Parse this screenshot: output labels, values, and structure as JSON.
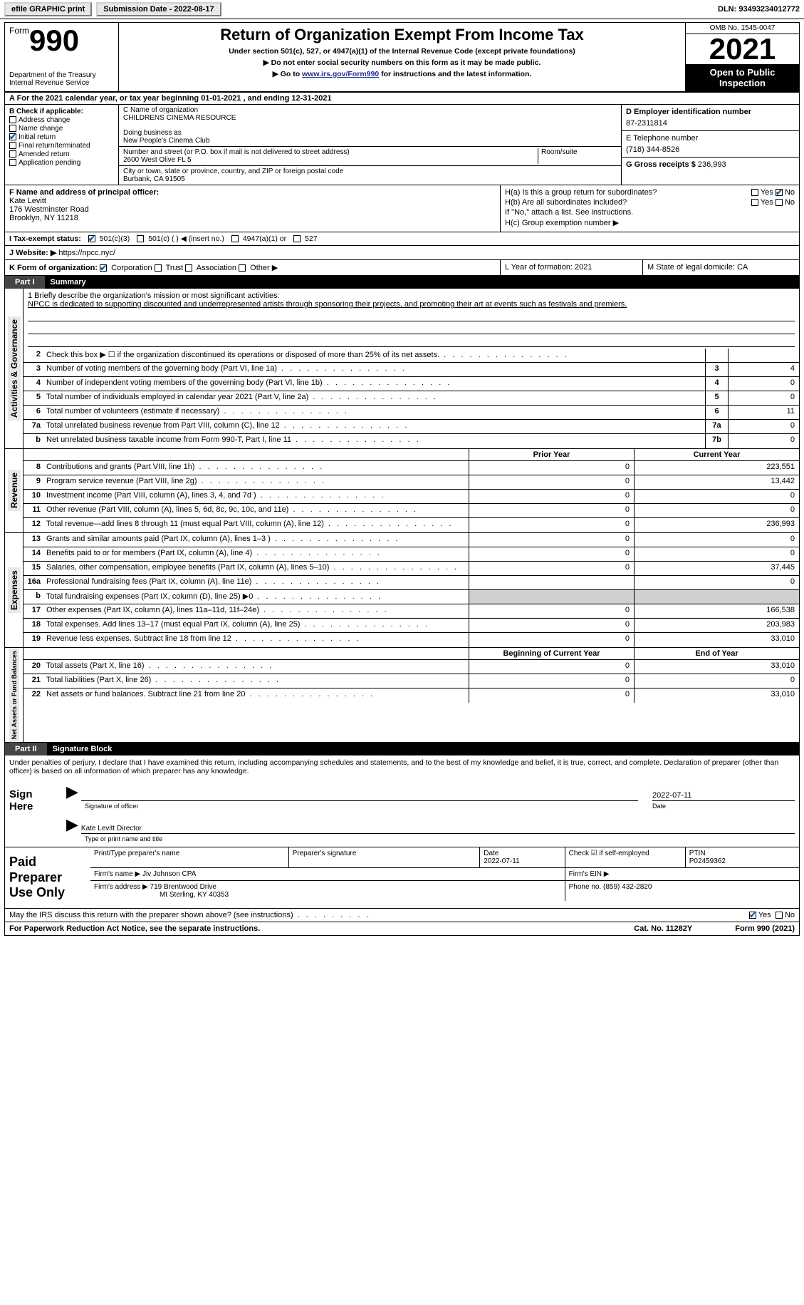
{
  "topbar": {
    "efile_label": "efile GRAPHIC print",
    "submission_label": "Submission Date - 2022-08-17",
    "dln_label": "DLN: 93493234012772"
  },
  "header": {
    "form_word": "Form",
    "form_no": "990",
    "dept": "Department of the Treasury\nInternal Revenue Service",
    "title": "Return of Organization Exempt From Income Tax",
    "subtitle": "Under section 501(c), 527, or 4947(a)(1) of the Internal Revenue Code (except private foundations)",
    "note1": "▶ Do not enter social security numbers on this form as it may be made public.",
    "note2_pre": "▶ Go to ",
    "note2_link": "www.irs.gov/Form990",
    "note2_post": " for instructions and the latest information.",
    "omb": "OMB No. 1545-0047",
    "year": "2021",
    "blackbox": "Open to Public Inspection"
  },
  "row_a": "A For the 2021 calendar year, or tax year beginning 01-01-2021   , and ending 12-31-2021",
  "sec_b": {
    "check_label": "B Check if applicable:",
    "items": [
      {
        "label": "Address change",
        "checked": false
      },
      {
        "label": "Name change",
        "checked": false
      },
      {
        "label": "Initial return",
        "checked": true
      },
      {
        "label": "Final return/terminated",
        "checked": false
      },
      {
        "label": "Amended return",
        "checked": false
      },
      {
        "label": "Application pending",
        "checked": false
      }
    ],
    "c_label": "C Name of organization",
    "c_name": "CHILDRENS CINEMA RESOURCE",
    "dba_label": "Doing business as",
    "dba": "New People's Cinema Club",
    "addr_label": "Number and street (or P.O. box if mail is not delivered to street address)",
    "room_label": "Room/suite",
    "addr": "2600 West Olive FL 5",
    "city_label": "City or town, state or province, country, and ZIP or foreign postal code",
    "city": "Burbank, CA  91505",
    "d_label": "D Employer identification number",
    "ein": "87-2311814",
    "e_label": "E Telephone number",
    "phone": "(718) 344-8526",
    "g_label": "G Gross receipts $",
    "g_val": "236,993"
  },
  "sec_f": {
    "f_label": "F Name and address of principal officer:",
    "f_name": "Kate Levitt",
    "f_addr1": "176 Westminster Road",
    "f_addr2": "Brooklyn, NY  11218",
    "ha": "H(a)  Is this a group return for subordinates?",
    "hb": "H(b)  Are all subordinates included?",
    "hb_note": "If \"No,\" attach a list. See instructions.",
    "hc": "H(c)  Group exemption number ▶",
    "yes": "Yes",
    "no": "No"
  },
  "row_i": {
    "label": "I  Tax-exempt status:",
    "opts": [
      "501(c)(3)",
      "501(c) (  ) ◀ (insert no.)",
      "4947(a)(1) or",
      "527"
    ]
  },
  "row_j": {
    "label": "J  Website: ▶",
    "val": "https://npcc.nyc/"
  },
  "row_k": {
    "k_label": "K Form of organization:",
    "k_opts": [
      "Corporation",
      "Trust",
      "Association",
      "Other ▶"
    ],
    "l": "L Year of formation: 2021",
    "m": "M State of legal domicile: CA"
  },
  "part1": {
    "label": "Part I",
    "title": "Summary"
  },
  "mission": {
    "q": "1  Briefly describe the organization's mission or most significant activities:",
    "text": "NPCC is dedicated to supporting discounted and underrepresented artists through sponsoring their projects, and promoting their art at events such as festivals and premiers."
  },
  "gov_lines": [
    {
      "num": "2",
      "text": "Check this box ▶ ☐  if the organization discontinued its operations or disposed of more than 25% of its net assets.",
      "box": "",
      "val": ""
    },
    {
      "num": "3",
      "text": "Number of voting members of the governing body (Part VI, line 1a)",
      "box": "3",
      "val": "4"
    },
    {
      "num": "4",
      "text": "Number of independent voting members of the governing body (Part VI, line 1b)",
      "box": "4",
      "val": "0"
    },
    {
      "num": "5",
      "text": "Total number of individuals employed in calendar year 2021 (Part V, line 2a)",
      "box": "5",
      "val": "0"
    },
    {
      "num": "6",
      "text": "Total number of volunteers (estimate if necessary)",
      "box": "6",
      "val": "11"
    },
    {
      "num": "7a",
      "text": "Total unrelated business revenue from Part VIII, column (C), line 12",
      "box": "7a",
      "val": "0"
    },
    {
      "num": "b",
      "text": "Net unrelated business taxable income from Form 990-T, Part I, line 11",
      "box": "7b",
      "val": "0"
    }
  ],
  "prior_head": "Prior Year",
  "curr_head": "Current Year",
  "rev_lines": [
    {
      "num": "8",
      "text": "Contributions and grants (Part VIII, line 1h)",
      "p": "0",
      "c": "223,551"
    },
    {
      "num": "9",
      "text": "Program service revenue (Part VIII, line 2g)",
      "p": "0",
      "c": "13,442"
    },
    {
      "num": "10",
      "text": "Investment income (Part VIII, column (A), lines 3, 4, and 7d )",
      "p": "0",
      "c": "0"
    },
    {
      "num": "11",
      "text": "Other revenue (Part VIII, column (A), lines 5, 6d, 8c, 9c, 10c, and 11e)",
      "p": "0",
      "c": "0"
    },
    {
      "num": "12",
      "text": "Total revenue—add lines 8 through 11 (must equal Part VIII, column (A), line 12)",
      "p": "0",
      "c": "236,993"
    }
  ],
  "exp_lines": [
    {
      "num": "13",
      "text": "Grants and similar amounts paid (Part IX, column (A), lines 1–3 )",
      "p": "0",
      "c": "0"
    },
    {
      "num": "14",
      "text": "Benefits paid to or for members (Part IX, column (A), line 4)",
      "p": "0",
      "c": "0"
    },
    {
      "num": "15",
      "text": "Salaries, other compensation, employee benefits (Part IX, column (A), lines 5–10)",
      "p": "0",
      "c": "37,445"
    },
    {
      "num": "16a",
      "text": "Professional fundraising fees (Part IX, column (A), line 11e)",
      "p": "",
      "c": "0"
    },
    {
      "num": "b",
      "text": "Total fundraising expenses (Part IX, column (D), line 25) ▶0",
      "p": "shade",
      "c": "shade"
    },
    {
      "num": "17",
      "text": "Other expenses (Part IX, column (A), lines 11a–11d, 11f–24e)",
      "p": "0",
      "c": "166,538"
    },
    {
      "num": "18",
      "text": "Total expenses. Add lines 13–17 (must equal Part IX, column (A), line 25)",
      "p": "0",
      "c": "203,983"
    },
    {
      "num": "19",
      "text": "Revenue less expenses. Subtract line 18 from line 12",
      "p": "0",
      "c": "33,010"
    }
  ],
  "bal_head1": "Beginning of Current Year",
  "bal_head2": "End of Year",
  "bal_lines": [
    {
      "num": "20",
      "text": "Total assets (Part X, line 16)",
      "p": "0",
      "c": "33,010"
    },
    {
      "num": "21",
      "text": "Total liabilities (Part X, line 26)",
      "p": "0",
      "c": "0"
    },
    {
      "num": "22",
      "text": "Net assets or fund balances. Subtract line 21 from line 20",
      "p": "0",
      "c": "33,010"
    }
  ],
  "side_labels": {
    "gov": "Activities & Governance",
    "rev": "Revenue",
    "exp": "Expenses",
    "bal": "Net Assets or Fund Balances"
  },
  "part2": {
    "label": "Part II",
    "title": "Signature Block"
  },
  "perjury": "Under penalties of perjury, I declare that I have examined this return, including accompanying schedules and statements, and to the best of my knowledge and belief, it is true, correct, and complete. Declaration of preparer (other than officer) is based on all information of which preparer has any knowledge.",
  "sign": {
    "here": "Sign Here",
    "sig_label": "Signature of officer",
    "date": "2022-07-11",
    "date_label": "Date",
    "name": "Kate Levitt Director",
    "name_label": "Type or print name and title"
  },
  "prep": {
    "label": "Paid Preparer Use Only",
    "r1": {
      "a": "Print/Type preparer's name",
      "b": "Preparer's signature",
      "c": "Date",
      "cv": "2022-07-11",
      "d": "Check ☑ if self-employed",
      "e": "PTIN",
      "ev": "P02459362"
    },
    "r2": {
      "a": "Firm's name    ▶",
      "av": "Jiv Johnson CPA",
      "b": "Firm's EIN ▶"
    },
    "r3": {
      "a": "Firm's address ▶",
      "av": "719 Brentwood Drive",
      "av2": "Mt Sterling, KY  40353",
      "b": "Phone no.",
      "bv": "(859) 432-2820"
    }
  },
  "discuss": "May the IRS discuss this return with the preparer shown above? (see instructions)",
  "footer": {
    "left": "For Paperwork Reduction Act Notice, see the separate instructions.",
    "mid": "Cat. No. 11282Y",
    "right": "Form 990 (2021)"
  }
}
